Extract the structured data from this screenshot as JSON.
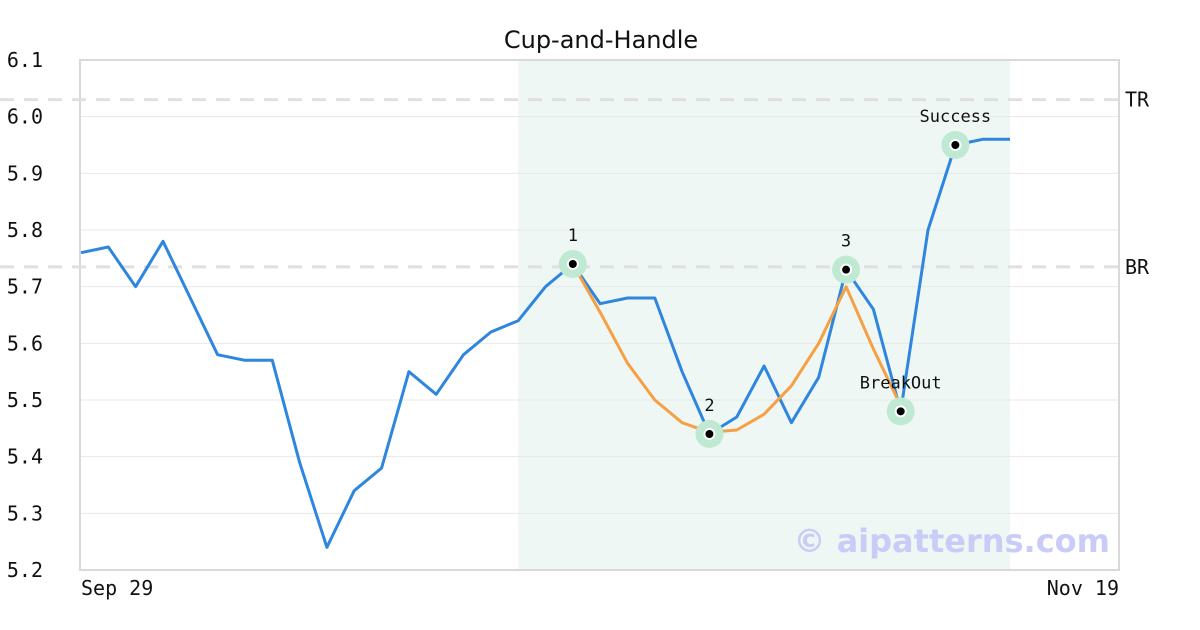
{
  "chart_data": {
    "type": "line",
    "title": "Cup-and-Handle",
    "xlabel": "",
    "ylabel": "",
    "ylim": [
      5.2,
      6.1
    ],
    "yticks": [
      5.2,
      5.3,
      5.4,
      5.5,
      5.6,
      5.7,
      5.8,
      5.9,
      6.0,
      6.1
    ],
    "ytick_labels": [
      "5.2",
      "5.3",
      "5.4",
      "5.5",
      "5.6",
      "5.7",
      "5.8",
      "5.9",
      "6.0",
      "6.1"
    ],
    "xtick_labels": [
      "Sep 29",
      "Nov 19"
    ],
    "grid": "horizontal",
    "series": [
      {
        "color": "#2e86de",
        "values": [
          5.76,
          5.77,
          5.7,
          5.78,
          5.68,
          5.58,
          5.57,
          5.57,
          5.39,
          5.24,
          5.34,
          5.38,
          5.55,
          5.51,
          5.58,
          5.62,
          5.64,
          5.7,
          5.74,
          5.67,
          5.68,
          5.68,
          5.55,
          5.44,
          5.47,
          5.56,
          5.46,
          5.54,
          5.73,
          5.66,
          5.48,
          5.8,
          5.95,
          5.96,
          5.96
        ]
      },
      {
        "color": "#f5a044",
        "start_index": 18,
        "values": [
          5.74,
          5.655,
          5.565,
          5.5,
          5.46,
          5.443,
          5.447,
          5.475,
          5.525,
          5.6,
          5.7,
          5.59,
          5.49
        ]
      }
    ],
    "levels": [
      {
        "label": "TR",
        "value": 6.03
      },
      {
        "label": "BR",
        "value": 5.735
      }
    ],
    "highlight_range": {
      "start_index": 16,
      "end_index": 34,
      "color": "#eef7f3"
    },
    "annotations": [
      {
        "label": "1",
        "index": 18,
        "value": 5.74
      },
      {
        "label": "2",
        "index": 23,
        "value": 5.44
      },
      {
        "label": "3",
        "index": 28,
        "value": 5.73
      },
      {
        "label": "BreakOut",
        "index": 30,
        "value": 5.48
      },
      {
        "label": "Success",
        "index": 32,
        "value": 5.95
      }
    ],
    "watermark": "© aipatterns.com"
  }
}
